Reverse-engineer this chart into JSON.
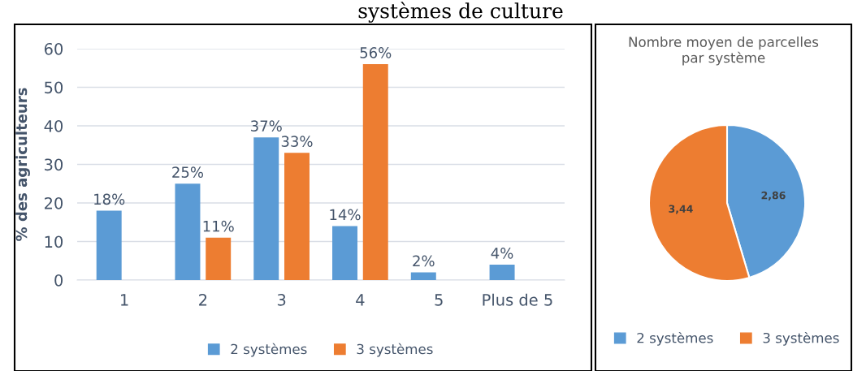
{
  "chart_data": [
    {
      "type": "bar",
      "ylabel": "% des agriculteurs",
      "annotations": [
        "systèmes de culture"
      ],
      "categories": [
        "1",
        "2",
        "3",
        "4",
        "5",
        "Plus de 5"
      ],
      "series": [
        {
          "name": "2 systèmes",
          "color": "#5b9bd5",
          "values": [
            18,
            25,
            37,
            14,
            2,
            4
          ],
          "value_labels": [
            "18%",
            "25%",
            "37%",
            "14%",
            "2%",
            "4%"
          ]
        },
        {
          "name": "3 systèmes",
          "color": "#ed7d31",
          "values": [
            null,
            11,
            33,
            56,
            null,
            null
          ],
          "value_labels": [
            null,
            "11%",
            "33%",
            "56%",
            null,
            null
          ]
        }
      ],
      "ylim": [
        0,
        60
      ],
      "yticks": [
        0,
        10,
        20,
        30,
        40,
        50,
        60
      ],
      "grid": "y",
      "legend": "bottom"
    },
    {
      "type": "pie",
      "title": "Nombre moyen de parcelles\npar système",
      "categories": [
        "2 systèmes",
        "3 systèmes"
      ],
      "values": [
        2.86,
        3.44
      ],
      "colors": [
        "#5b9bd5",
        "#ed7d31"
      ],
      "value_labels": [
        "2,86",
        "3,44"
      ],
      "legend": "bottom"
    }
  ]
}
